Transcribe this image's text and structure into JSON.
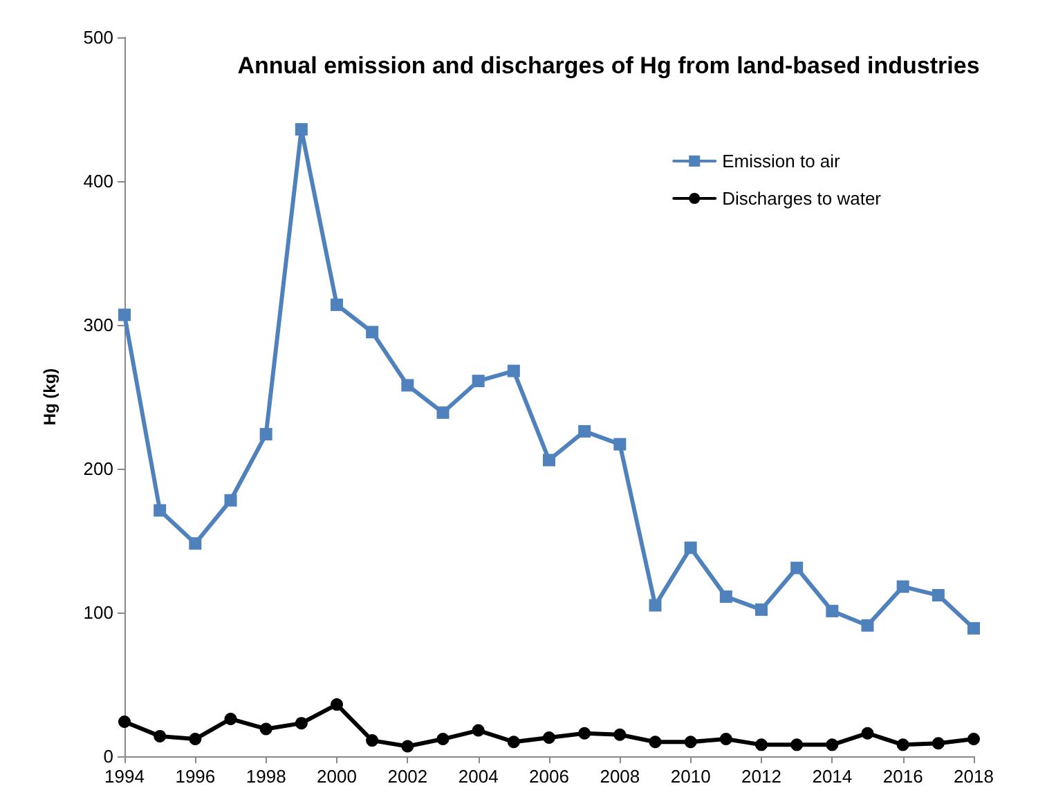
{
  "chart_data": {
    "type": "line",
    "title": "Annual emission and discharges of Hg from land-based industries",
    "ylabel": "Hg (kg)",
    "x": [
      1994,
      1995,
      1996,
      1997,
      1998,
      1999,
      2000,
      2001,
      2002,
      2003,
      2004,
      2005,
      2006,
      2007,
      2008,
      2009,
      2010,
      2011,
      2012,
      2013,
      2014,
      2015,
      2016,
      2017,
      2018
    ],
    "series": [
      {
        "name": "Emission to air",
        "color": "#4f81bd",
        "marker": "square",
        "values": [
          307,
          171,
          148,
          178,
          224,
          436,
          314,
          295,
          258,
          239,
          261,
          268,
          206,
          226,
          217,
          105,
          145,
          111,
          102,
          131,
          101,
          91,
          118,
          112,
          89
        ]
      },
      {
        "name": "Discharges to water",
        "color": "#000000",
        "marker": "circle",
        "values": [
          24,
          14,
          12,
          26,
          19,
          23,
          36,
          11,
          7,
          12,
          18,
          10,
          13,
          16,
          15,
          10,
          10,
          12,
          8,
          8,
          8,
          16,
          8,
          9,
          12
        ]
      }
    ],
    "xlim": [
      1994,
      2018
    ],
    "xticks": [
      1994,
      1996,
      1998,
      2000,
      2002,
      2004,
      2006,
      2008,
      2010,
      2012,
      2014,
      2016,
      2018
    ],
    "ylim": [
      0,
      500
    ],
    "yticks": [
      0,
      100,
      200,
      300,
      400,
      500
    ],
    "grid": false,
    "legend": "top right",
    "line_style": "solid"
  }
}
